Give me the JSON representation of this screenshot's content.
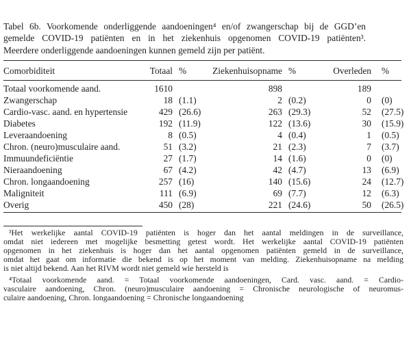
{
  "colors": {
    "background": "#ffffff",
    "text": "#1e1e1e",
    "rule": "#2b2b2b"
  },
  "caption": {
    "lines": [
      "Tabel 6b. Voorkomende onderliggende aandoeningen⁴ en/of zwangerschap bij de GGD’en",
      "gemelde COVID-19 patiënten en in het ziekenhuis opgenomen COVID-19 patiënten³.",
      "Meerdere onderliggende aandoeningen kunnen gemeld zijn per patiënt."
    ]
  },
  "table": {
    "headers": [
      "Comorbiditeit",
      "Totaal",
      "%",
      "Ziekenhuisopname",
      "%",
      "Overleden",
      "%"
    ],
    "rows": [
      [
        "Totaal voorkomende aand.",
        "1610",
        "",
        "898",
        "",
        "189",
        ""
      ],
      [
        "Zwangerschap",
        "18",
        "(1.1)",
        "2",
        "(0.2)",
        "0",
        "(0)"
      ],
      [
        "Cardio-vasc. aand. en hypertensie",
        "429",
        "(26.6)",
        "263",
        "(29.3)",
        "52",
        "(27.5)"
      ],
      [
        "Diabetes",
        "192",
        "(11.9)",
        "122",
        "(13.6)",
        "30",
        "(15.9)"
      ],
      [
        "Leveraandoening",
        "8",
        "(0.5)",
        "4",
        "(0.4)",
        "1",
        "(0.5)"
      ],
      [
        "Chron. (neuro)musculaire aand.",
        "51",
        "(3.2)",
        "21",
        "(2.3)",
        "7",
        "(3.7)"
      ],
      [
        "Immuundeficiëntie",
        "27",
        "(1.7)",
        "14",
        "(1.6)",
        "0",
        "(0)"
      ],
      [
        "Nieraandoening",
        "67",
        "(4.2)",
        "42",
        "(4.7)",
        "13",
        "(6.9)"
      ],
      [
        "Chron. longaandoening",
        "257",
        "(16)",
        "140",
        "(15.6)",
        "24",
        "(12.7)"
      ],
      [
        "Maligniteit",
        "111",
        "(6.9)",
        "69",
        "(7.7)",
        "12",
        "(6.3)"
      ],
      [
        "Overig",
        "450",
        "(28)",
        "221",
        "(24.6)",
        "50",
        "(26.5)"
      ]
    ]
  },
  "footnotes": [
    {
      "lines": [
        "³Het werkelijke aantal COVID-19 patiënten is hoger dan het aantal meldingen in de surveillance,",
        "omdat niet iedereen met mogelijke besmetting getest wordt. Het werkelijke aantal COVID-19 patiënten",
        "opgenomen in het ziekenhuis is hoger dan het aantal opgenomen patiënten gemeld in de surveillance,",
        "omdat het gaat om informatie die bekend is op het moment van melding. Ziekenhuisopname na melding",
        "is niet altijd bekend. Aan het RIVM wordt niet gemeld wie hersteld is"
      ]
    },
    {
      "lines": [
        "⁴Totaal voorkomende aand. = Totaal voorkomende aandoeningen, Card. vasc. aand. = Cardio-",
        "vasculaire aandoening, Chron. (neuro)musculaire aandoening = Chronische neurologische of neuromus-",
        "culaire aandoening, Chron. longaandoening = Chronische longaandoening"
      ]
    }
  ]
}
